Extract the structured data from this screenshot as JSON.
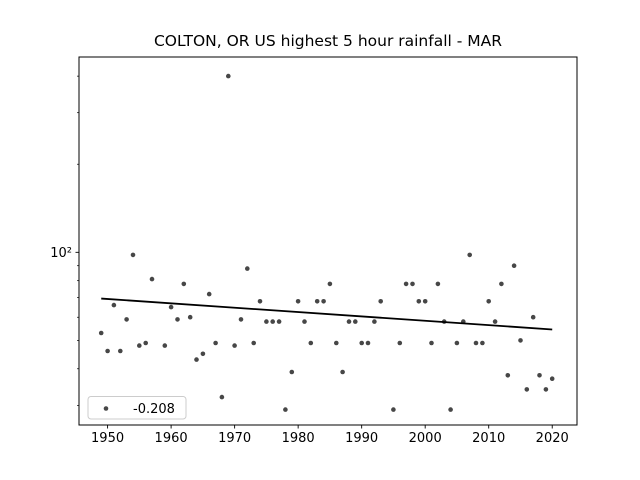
{
  "title": "COLTON, OR US highest 5 hour rainfall - MAR",
  "legend": {
    "label": "-0.208",
    "position": "lower left"
  },
  "colors": {
    "background": "#ffffff",
    "point": "#474747",
    "trend": "#000000",
    "axis": "#000000",
    "tick_label": "#000000",
    "legend_border": "#cccccc",
    "legend_bg": "#ffffff"
  },
  "chart_data": {
    "type": "scatter",
    "title": "COLTON, OR US highest 5 hour rainfall - MAR",
    "xlabel": "",
    "ylabel": "",
    "y_scale": "log",
    "grid": false,
    "xlim": [
      1945.5,
      2023.9
    ],
    "ylim": [
      25.7,
      465
    ],
    "x_ticks": [
      1950,
      1960,
      1970,
      1980,
      1990,
      2000,
      2010,
      2020
    ],
    "x_tick_labels": [
      "1950",
      "1960",
      "1970",
      "1980",
      "1990",
      "2000",
      "2010",
      "2020"
    ],
    "y_major_ticks": [
      100
    ],
    "y_major_tick_labels": [
      "10²"
    ],
    "y_minor_ticks": [
      30,
      40,
      50,
      60,
      70,
      80,
      90,
      200,
      300,
      400
    ],
    "x": [
      1949,
      1950,
      1951,
      1952,
      1953,
      1954,
      1955,
      1956,
      1957,
      1959,
      1960,
      1961,
      1962,
      1963,
      1964,
      1965,
      1966,
      1967,
      1968,
      1969,
      1970,
      1971,
      1972,
      1973,
      1974,
      1975,
      1976,
      1977,
      1978,
      1979,
      1980,
      1981,
      1982,
      1983,
      1984,
      1985,
      1986,
      1987,
      1988,
      1989,
      1990,
      1991,
      1992,
      1993,
      1995,
      1996,
      1997,
      1998,
      1999,
      2000,
      2001,
      2002,
      2003,
      2004,
      2005,
      2006,
      2007,
      2008,
      2009,
      2010,
      2011,
      2012,
      2013,
      2014,
      2015,
      2016,
      2017,
      2018,
      2019,
      2020
    ],
    "y": [
      53,
      46,
      66,
      46,
      59,
      98,
      48,
      49,
      81,
      48,
      65,
      59,
      78,
      60,
      43,
      45,
      72,
      49,
      32,
      400,
      48,
      59,
      88,
      49,
      68,
      58,
      58,
      58,
      29,
      39,
      68,
      58,
      49,
      68,
      68,
      78,
      49,
      39,
      58,
      58,
      49,
      49,
      58,
      68,
      29,
      49,
      78,
      78,
      68,
      68,
      49,
      78,
      58,
      29,
      49,
      58,
      98,
      49,
      49,
      68,
      58,
      78,
      38,
      90,
      50,
      34,
      60,
      38,
      34,
      37
    ],
    "trend": {
      "x1": 1949,
      "y1": 69.5,
      "x2": 2020,
      "y2": 54.5,
      "slope_label": "-0.208"
    },
    "legend_position": "lower left"
  }
}
